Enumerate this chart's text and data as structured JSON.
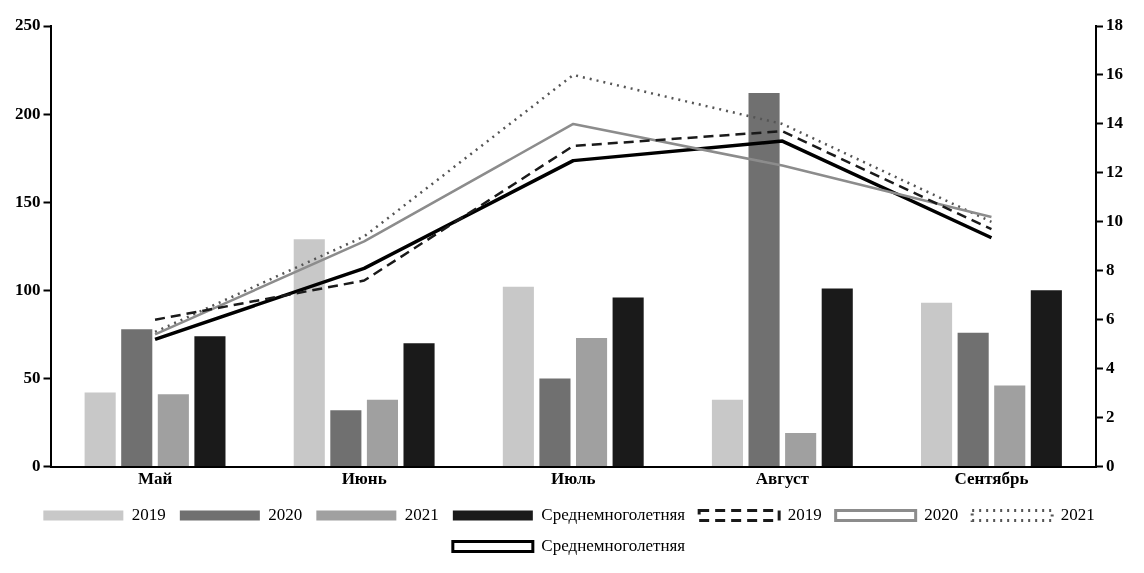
{
  "chart_data": {
    "type": "bar",
    "categories": [
      "Май",
      "Июнь",
      "Июль",
      "Август",
      "Сентябрь"
    ],
    "series": [
      {
        "name": "2019",
        "color": "#c8c8c8",
        "values": [
          42,
          129,
          102,
          38,
          93
        ]
      },
      {
        "name": "2020",
        "color": "#707070",
        "values": [
          78,
          32,
          50,
          212,
          76
        ]
      },
      {
        "name": "2021",
        "color": "#a0a0a0",
        "values": [
          41,
          38,
          73,
          19,
          46
        ]
      },
      {
        "name": "Среднемноголетняя",
        "color": "#1a1a1a",
        "values": [
          74,
          70,
          96,
          101,
          100
        ]
      },
      {
        "name": "2019",
        "type": "line",
        "axis": "y2",
        "line_style": "dashed",
        "color": "#1a1a1a",
        "values": [
          6.0,
          7.6,
          13.1,
          13.7,
          9.7
        ]
      },
      {
        "name": "2020",
        "type": "line",
        "axis": "y2",
        "line_style": "solid",
        "color": "#8c8c8c",
        "values": [
          5.4,
          9.2,
          14.0,
          12.3,
          10.2
        ]
      },
      {
        "name": "2021",
        "type": "line",
        "axis": "y2",
        "line_style": "dotted",
        "color": "#555555",
        "values": [
          5.5,
          9.4,
          16.0,
          14.0,
          10.0
        ]
      },
      {
        "name": "Среднемноголетняя",
        "type": "line",
        "axis": "y2",
        "line_style": "solid",
        "color": "#000000",
        "values": [
          5.2,
          8.1,
          12.5,
          13.3,
          9.35
        ]
      }
    ],
    "ylim": [
      0,
      250
    ],
    "yticks": [
      0,
      50,
      100,
      150,
      200,
      250
    ],
    "y2lim": [
      0,
      18
    ],
    "y2ticks": [
      0,
      2,
      4,
      6,
      8,
      10,
      12,
      14,
      16,
      18
    ],
    "grid": false,
    "legend": "bottom",
    "marker": "none"
  }
}
